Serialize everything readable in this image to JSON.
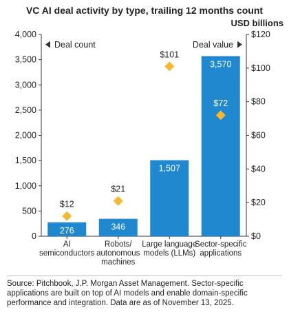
{
  "chart_data": {
    "type": "bar",
    "title": "VC AI deal activity by type, trailing 12 months count",
    "categories": [
      [
        "AI",
        "semiconductors"
      ],
      [
        "Robots/",
        "autonomous",
        "machines"
      ],
      [
        "Large language",
        "models (LLMs)"
      ],
      [
        "Sector-specific",
        "applications"
      ]
    ],
    "series": [
      {
        "name": "Deal count",
        "type": "bar",
        "axis": "left",
        "values": [
          276,
          346,
          1507,
          3570
        ],
        "labels": [
          "276",
          "346",
          "1,507",
          "3,570"
        ],
        "color": "#1f88cf"
      },
      {
        "name": "Deal value",
        "type": "scatter",
        "axis": "right",
        "values": [
          12,
          21,
          101,
          72
        ],
        "labels": [
          "$12",
          "$21",
          "$101",
          "$72"
        ],
        "color": "#f6b830",
        "marker": "diamond"
      }
    ],
    "y_left": {
      "ylim": [
        0,
        4000
      ],
      "ticks": [
        0,
        500,
        1000,
        1500,
        2000,
        2500,
        3000,
        3500,
        4000
      ],
      "tick_labels": [
        "0",
        "500",
        "1,000",
        "1,500",
        "2,000",
        "2,500",
        "3,000",
        "3,500",
        "4,000"
      ],
      "legend_label": "Deal count"
    },
    "y_right": {
      "ylim": [
        0,
        120
      ],
      "ticks": [
        0,
        20,
        40,
        60,
        80,
        100,
        120
      ],
      "tick_labels": [
        "$0",
        "$20",
        "$40",
        "$60",
        "$80",
        "$100",
        "$120"
      ],
      "unit_label": "USD billions",
      "legend_label": "Deal value"
    },
    "grid": false
  },
  "footer": {
    "source": "Source: Pitchbook, J.P. Morgan Asset Management. Sector-specific applications are built on top of AI models and enable domain-specific performance and integration. Data are as of November 13, 2025."
  }
}
